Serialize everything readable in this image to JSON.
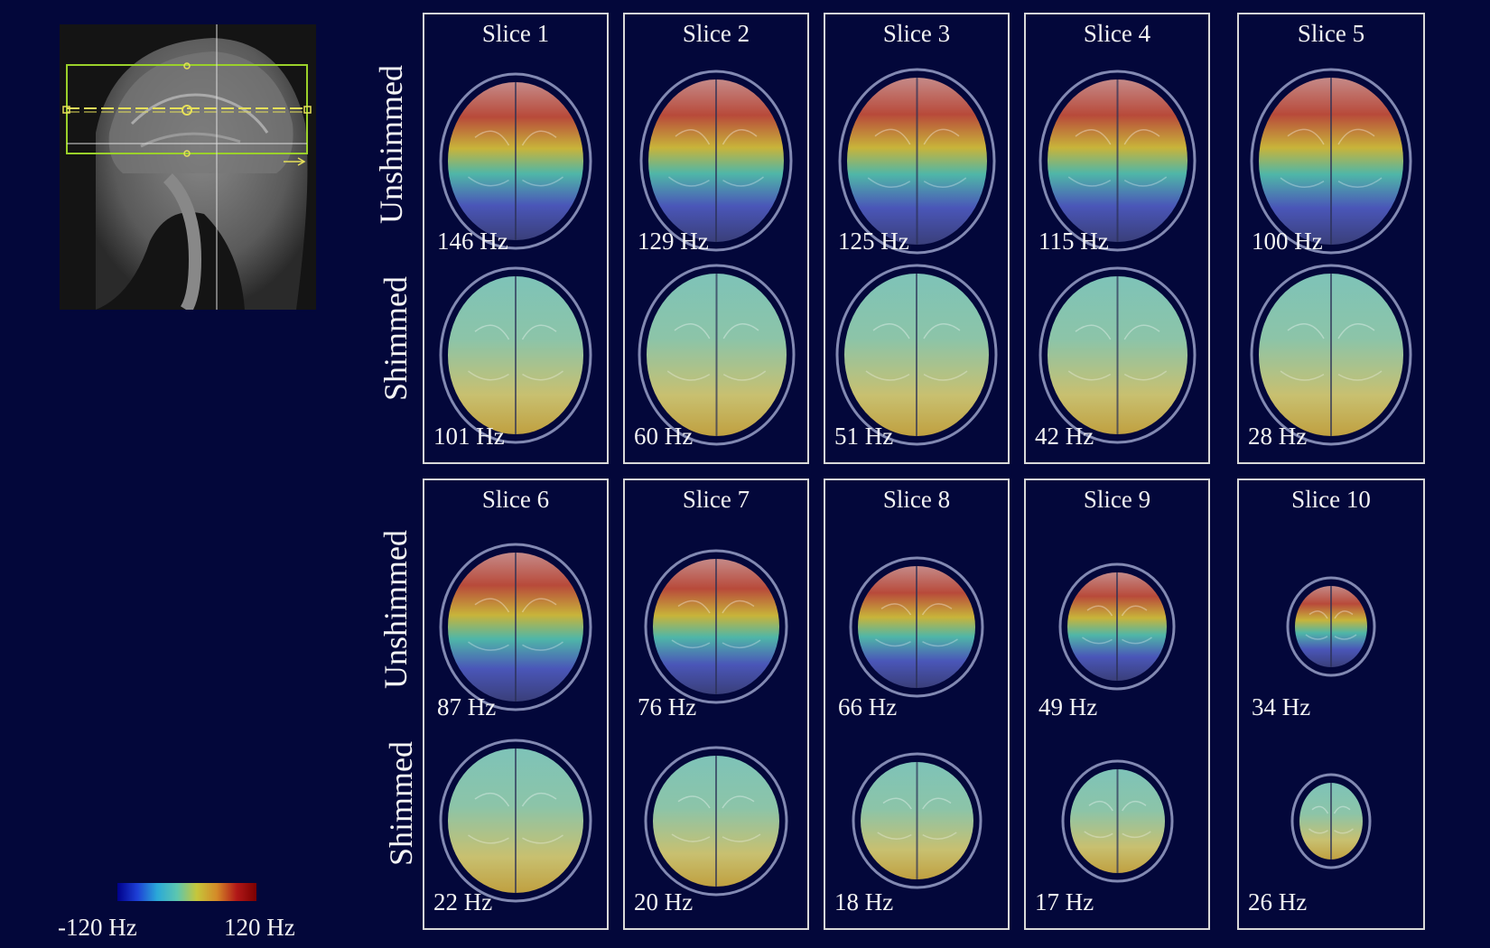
{
  "rows": {
    "top_unshimmed_label": "Unshimmed",
    "top_shimmed_label": "Shimmed",
    "bottom_unshimmed_label": "Unshimmed",
    "bottom_shimmed_label": "Shimmed"
  },
  "panels": [
    {
      "title": "Slice 1",
      "unshimmed": "146 Hz",
      "shimmed": "101 Hz"
    },
    {
      "title": "Slice 2",
      "unshimmed": "129 Hz",
      "shimmed": "60 Hz"
    },
    {
      "title": "Slice 3",
      "unshimmed": "125 Hz",
      "shimmed": "51 Hz"
    },
    {
      "title": "Slice 4",
      "unshimmed": "115 Hz",
      "shimmed": "42 Hz"
    },
    {
      "title": "Slice 5",
      "unshimmed": "100 Hz",
      "shimmed": "28 Hz"
    },
    {
      "title": "Slice 6",
      "unshimmed": "87 Hz",
      "shimmed": "22 Hz"
    },
    {
      "title": "Slice 7",
      "unshimmed": "76 Hz",
      "shimmed": "20 Hz"
    },
    {
      "title": "Slice 8",
      "unshimmed": "66 Hz",
      "shimmed": "18 Hz"
    },
    {
      "title": "Slice 9",
      "unshimmed": "49 Hz",
      "shimmed": "17 Hz"
    },
    {
      "title": "Slice 10",
      "unshimmed": "34 Hz",
      "shimmed": "26 Hz"
    }
  ],
  "colorbar": {
    "min_label": "-120 Hz",
    "max_label": "120 Hz",
    "colors": [
      "#00008a",
      "#2aa8d8",
      "#c6c63a",
      "#b21818",
      "#7a0000"
    ]
  },
  "colors": {
    "background": "#03073a",
    "panel_border": "#d9d9d9",
    "slab_outline": "#9bd12a"
  }
}
